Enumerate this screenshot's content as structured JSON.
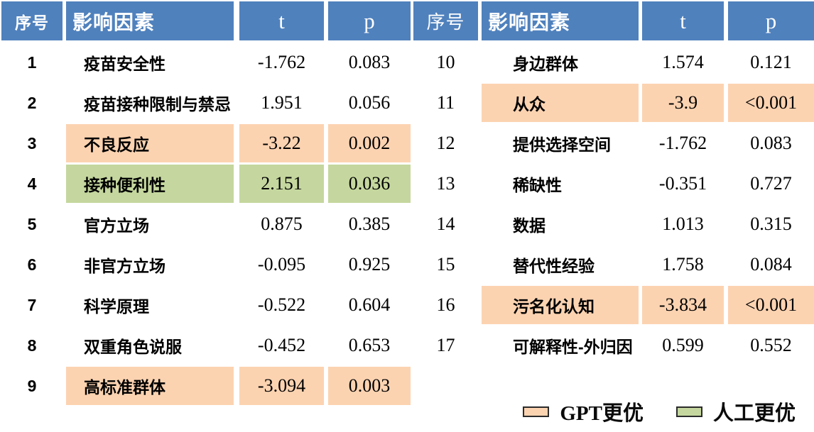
{
  "chart_data": {
    "type": "table",
    "title": "",
    "header": {
      "no": "序号",
      "factor": "影响因素",
      "t": "t",
      "p": "p"
    },
    "tables": {
      "left": {
        "rows": [
          {
            "no": "1",
            "factor": "疫苗安全性",
            "t": "-1.762",
            "p": "0.083",
            "highlight": null
          },
          {
            "no": "2",
            "factor": "疫苗接种限制与禁忌",
            "t": "1.951",
            "p": "0.056",
            "highlight": null
          },
          {
            "no": "3",
            "factor": "不良反应",
            "t": "-3.22",
            "p": "0.002",
            "highlight": "gpt"
          },
          {
            "no": "4",
            "factor": "接种便利性",
            "t": "2.151",
            "p": "0.036",
            "highlight": "human"
          },
          {
            "no": "5",
            "factor": "官方立场",
            "t": "0.875",
            "p": "0.385",
            "highlight": null
          },
          {
            "no": "6",
            "factor": "非官方立场",
            "t": "-0.095",
            "p": "0.925",
            "highlight": null
          },
          {
            "no": "7",
            "factor": "科学原理",
            "t": "-0.522",
            "p": "0.604",
            "highlight": null
          },
          {
            "no": "8",
            "factor": "双重角色说服",
            "t": "-0.452",
            "p": "0.653",
            "highlight": null
          },
          {
            "no": "9",
            "factor": "高标准群体",
            "t": "-3.094",
            "p": "0.003",
            "highlight": "gpt"
          }
        ]
      },
      "right": {
        "rows": [
          {
            "no": "10",
            "factor": "身边群体",
            "t": "1.574",
            "p": "0.121",
            "highlight": null
          },
          {
            "no": "11",
            "factor": "从众",
            "t": "-3.9",
            "p": "<0.001",
            "highlight": "gpt"
          },
          {
            "no": "12",
            "factor": "提供选择空间",
            "t": "-1.762",
            "p": "0.083",
            "highlight": null
          },
          {
            "no": "13",
            "factor": "稀缺性",
            "t": "-0.351",
            "p": "0.727",
            "highlight": null
          },
          {
            "no": "14",
            "factor": "数据",
            "t": "1.013",
            "p": "0.315",
            "highlight": null
          },
          {
            "no": "15",
            "factor": "替代性经验",
            "t": "1.758",
            "p": "0.084",
            "highlight": null
          },
          {
            "no": "16",
            "factor": "污名化认知",
            "t": "-3.834",
            "p": "<0.001",
            "highlight": "gpt"
          },
          {
            "no": "17",
            "factor": "可解释性-外归因",
            "t": "0.599",
            "p": "0.552",
            "highlight": null
          }
        ]
      }
    },
    "legend": {
      "gpt": "GPT更优",
      "human": "人工更优"
    },
    "colors": {
      "header_bg": "#4F81BD",
      "header_text": "#FFFFFF",
      "gpt_highlight": "#FCD3B1",
      "human_highlight": "#C5D79E"
    }
  }
}
